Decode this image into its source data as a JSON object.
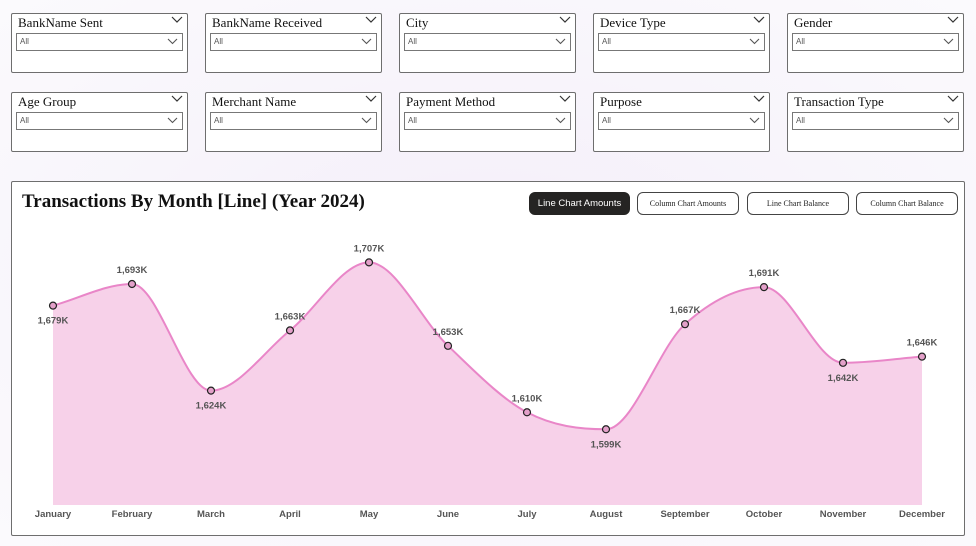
{
  "filters": [
    {
      "title": "BankName Sent",
      "value": "All"
    },
    {
      "title": "BankName Received",
      "value": "All"
    },
    {
      "title": "City",
      "value": "All"
    },
    {
      "title": "Device Type",
      "value": "All"
    },
    {
      "title": "Gender",
      "value": "All"
    },
    {
      "title": "Age Group",
      "value": "All"
    },
    {
      "title": "Merchant Name",
      "value": "All"
    },
    {
      "title": "Payment Method",
      "value": "All"
    },
    {
      "title": "Purpose",
      "value": "All"
    },
    {
      "title": "Transaction Type",
      "value": "All"
    }
  ],
  "card": {
    "title": "Transactions By Month [Line] (Year 2024)",
    "buttons": [
      {
        "label": "Line Chart Amounts",
        "active": true
      },
      {
        "label": "Column Chart Amounts",
        "active": false
      },
      {
        "label": "Line Chart Balance",
        "active": false
      },
      {
        "label": "Column Chart Balance",
        "active": false
      }
    ]
  },
  "colors": {
    "line": "#e986c8",
    "area": "#f7d1e9",
    "marker_fill": "#e3a0c9",
    "marker_stroke": "#222222",
    "active_button": "#252423"
  },
  "chart_data": {
    "type": "area",
    "categories": [
      "January",
      "February",
      "March",
      "April",
      "May",
      "June",
      "July",
      "August",
      "September",
      "October",
      "November",
      "December"
    ],
    "values": [
      1679,
      1693,
      1624,
      1663,
      1707,
      1653,
      1610,
      1599,
      1667,
      1691,
      1642,
      1646
    ],
    "labels": [
      "1,679K",
      "1,693K",
      "1,624K",
      "1,663K",
      "1,707K",
      "1,653K",
      "1,610K",
      "1,599K",
      "1,667K",
      "1,691K",
      "1,642K",
      "1,646K"
    ],
    "unit": "K",
    "ylim": [
      1550,
      1715
    ],
    "grid": false,
    "legend": "none"
  }
}
